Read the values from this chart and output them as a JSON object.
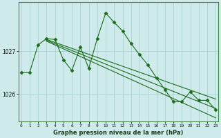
{
  "title": "Graphe pression niveau de la mer (hPa)",
  "bg_color": "#ceeaea",
  "grid_color": "#a8d4d4",
  "line_color": "#1a6b1a",
  "ytick_labels": [
    "1026",
    "1027"
  ],
  "ytick_vals": [
    1026.0,
    1027.0
  ],
  "xtick_vals": [
    0,
    1,
    2,
    3,
    4,
    5,
    6,
    7,
    8,
    9,
    10,
    11,
    12,
    13,
    14,
    15,
    16,
    17,
    18,
    19,
    20,
    21,
    22,
    23
  ],
  "ylim": [
    1025.35,
    1028.15
  ],
  "xlim": [
    -0.3,
    23.3
  ],
  "line1_x": [
    0,
    1,
    2,
    3,
    4,
    5,
    6,
    7,
    8,
    9,
    10,
    11,
    12,
    13,
    14,
    15,
    16,
    17,
    18,
    19,
    20,
    21,
    22,
    23
  ],
  "line1_y": [
    1026.5,
    1026.5,
    1027.15,
    1027.3,
    1027.28,
    1026.8,
    1026.55,
    1027.1,
    1026.6,
    1027.3,
    1027.9,
    1027.68,
    1027.48,
    1027.18,
    1026.92,
    1026.68,
    1026.38,
    1026.1,
    1025.82,
    1025.82,
    1026.05,
    1025.85,
    1025.85,
    1025.63
  ],
  "line2_x": [
    3,
    4,
    5,
    6,
    7,
    8,
    9,
    10,
    11,
    12,
    13,
    14,
    15,
    16,
    17,
    18,
    19,
    20,
    21,
    22,
    23
  ],
  "line2_y": [
    1027.28,
    1027.21,
    1027.14,
    1027.07,
    1027.0,
    1026.93,
    1026.86,
    1026.79,
    1026.72,
    1026.65,
    1026.58,
    1026.51,
    1026.44,
    1026.37,
    1026.3,
    1026.23,
    1026.16,
    1026.09,
    1026.02,
    1025.95,
    1025.88
  ],
  "line3_x": [
    3,
    4,
    5,
    6,
    7,
    8,
    9,
    10,
    11,
    12,
    13,
    14,
    15,
    16,
    17,
    18,
    19,
    20,
    21,
    22,
    23
  ],
  "line3_y": [
    1027.26,
    1027.18,
    1027.1,
    1027.02,
    1026.94,
    1026.86,
    1026.78,
    1026.7,
    1026.62,
    1026.54,
    1026.46,
    1026.38,
    1026.3,
    1026.22,
    1026.14,
    1026.06,
    1025.98,
    1025.9,
    1025.82,
    1025.74,
    1025.66
  ],
  "line4_x": [
    3,
    4,
    5,
    6,
    7,
    8,
    9,
    10,
    11,
    12,
    13,
    14,
    15,
    16,
    17,
    18,
    19,
    20,
    21,
    22,
    23
  ],
  "line4_y": [
    1027.24,
    1027.15,
    1027.06,
    1026.97,
    1026.88,
    1026.79,
    1026.7,
    1026.61,
    1026.52,
    1026.43,
    1026.34,
    1026.25,
    1026.16,
    1026.07,
    1025.98,
    1025.89,
    1025.8,
    1025.71,
    1025.62,
    1025.53,
    1025.44
  ]
}
